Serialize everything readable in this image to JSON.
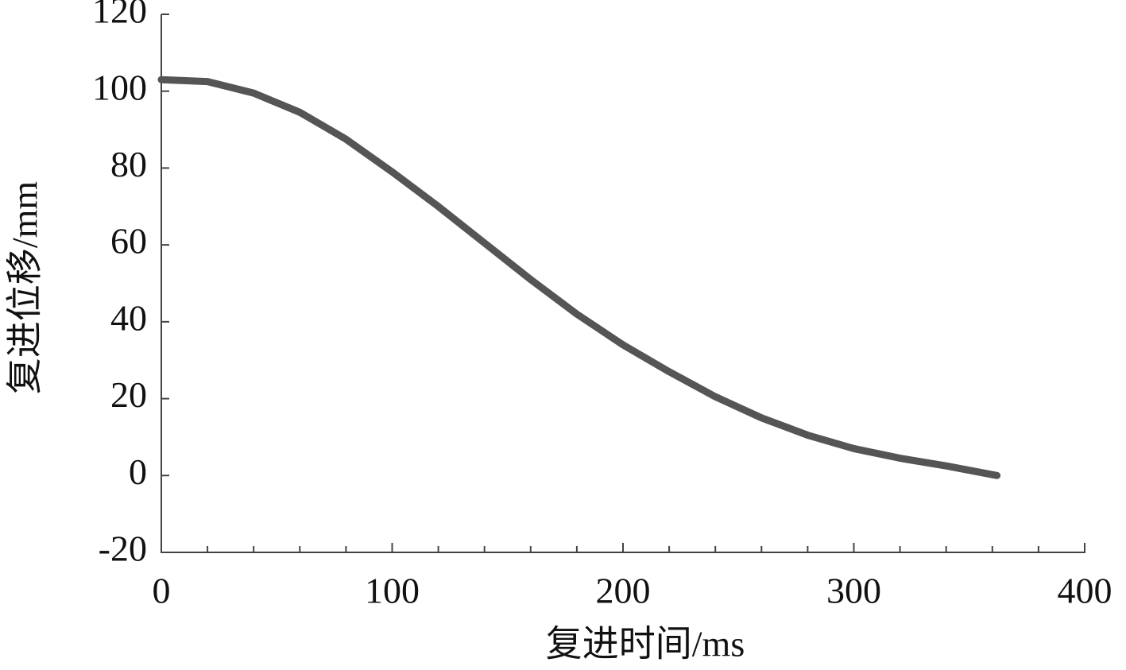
{
  "chart_data": {
    "type": "line",
    "x_label": "复进时间/ms",
    "y_label": "复进位移/mm",
    "x": [
      0,
      20,
      40,
      60,
      80,
      100,
      120,
      140,
      160,
      180,
      200,
      220,
      240,
      260,
      280,
      300,
      320,
      340,
      362
    ],
    "values": [
      103,
      102.5,
      99.5,
      94.5,
      87.5,
      79,
      70,
      60.5,
      51,
      42,
      34,
      27,
      20.5,
      15,
      10.5,
      7,
      4.5,
      2.5,
      0
    ],
    "color": "#555555",
    "xlim": [
      0,
      400
    ],
    "xticks": [
      0,
      100,
      200,
      300,
      400
    ],
    "xminorticks": [
      20,
      40,
      60,
      80,
      120,
      140,
      160,
      180,
      220,
      240,
      260,
      280,
      320,
      340,
      360,
      380
    ],
    "ylim": [
      -20,
      120
    ],
    "yticks": [
      -20,
      0,
      20,
      40,
      60,
      80,
      100,
      120
    ],
    "grid": false
  }
}
